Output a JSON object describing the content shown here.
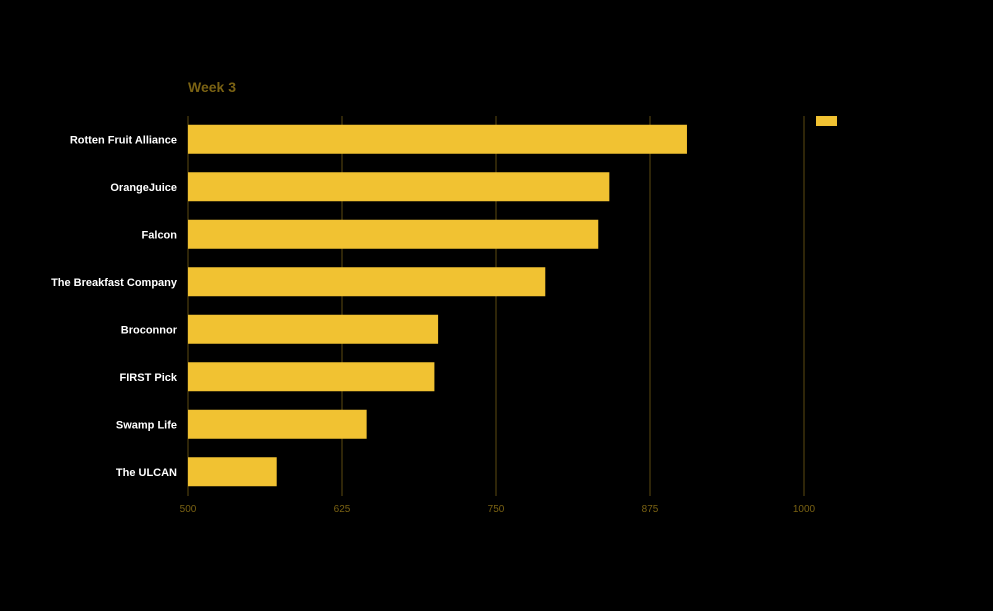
{
  "chart_data": {
    "type": "bar",
    "orientation": "horizontal",
    "title": "Week 3",
    "xlabel": "",
    "ylabel": "",
    "categories": [
      "Rotten Fruit Alliance",
      "OrangeJuice",
      "Falcon",
      "The Breakfast Company",
      "Broconnor",
      "FIRST Pick",
      "Swamp Life",
      "The ULCAN"
    ],
    "series": [
      {
        "name": "",
        "values": [
          905,
          842,
          833,
          790,
          703,
          700,
          645,
          572
        ]
      }
    ],
    "xlim": [
      500,
      1000
    ],
    "xticks": [
      500,
      625,
      750,
      875,
      1000
    ],
    "grid": true,
    "legend": "top-right",
    "colors": {
      "bar": "#f1c232",
      "grid": "#5c4a0f",
      "text": "#ffffff",
      "title": "#7a6213",
      "background": "#000000"
    }
  }
}
